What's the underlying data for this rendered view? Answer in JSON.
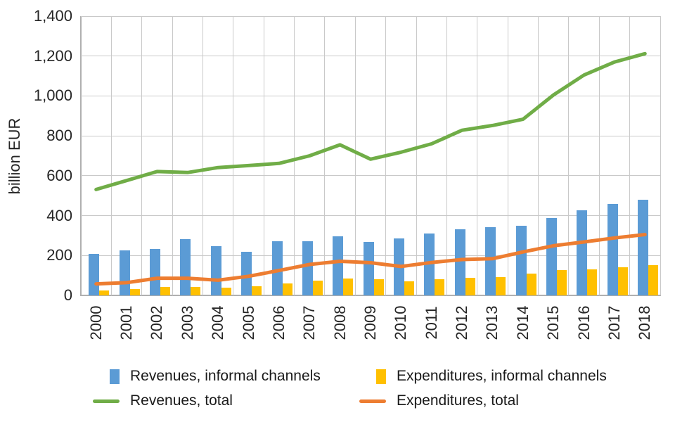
{
  "chart_data": {
    "type": "bar",
    "subtype": "bar-line-combo",
    "title": "",
    "xlabel": "",
    "ylabel": "billion EUR",
    "ylim": [
      0,
      1400
    ],
    "ytick_interval": 200,
    "ytick_labels_top_down": [
      "1,400",
      "1,200",
      "1,000",
      "800",
      "600",
      "400",
      "200",
      "0"
    ],
    "grid": "both",
    "legend_position": "bottom",
    "categories": [
      "2000",
      "2001",
      "2002",
      "2003",
      "2004",
      "2005",
      "2006",
      "2007",
      "2008",
      "2009",
      "2010",
      "2011",
      "2012",
      "2013",
      "2014",
      "2015",
      "2016",
      "2017",
      "2018"
    ],
    "series": [
      {
        "name": "Revenues, informal channels",
        "kind": "bar",
        "color": "#5b9bd5",
        "values": [
          207,
          226,
          232,
          281,
          246,
          220,
          271,
          272,
          298,
          268,
          286,
          310,
          331,
          341,
          349,
          387,
          427,
          458,
          478
        ]
      },
      {
        "name": "Expenditures, informal channels",
        "kind": "bar",
        "color": "#ffc000",
        "values": [
          26,
          31,
          42,
          42,
          38,
          47,
          60,
          75,
          83,
          80,
          71,
          80,
          88,
          91,
          110,
          126,
          130,
          140,
          151
        ]
      },
      {
        "name": "Revenues, total",
        "kind": "line",
        "color": "#70ad47",
        "values": [
          531,
          576,
          621,
          616,
          641,
          651,
          662,
          700,
          755,
          683,
          718,
          760,
          828,
          852,
          883,
          1005,
          1105,
          1170,
          1212
        ]
      },
      {
        "name": "Expenditures, total",
        "kind": "line",
        "color": "#ed7d31",
        "values": [
          58,
          64,
          86,
          86,
          76,
          96,
          125,
          155,
          171,
          164,
          145,
          165,
          180,
          184,
          218,
          249,
          268,
          288,
          305
        ]
      }
    ],
    "colors": {
      "gridline": "#c9c9c9",
      "axis": "#b0b0b0",
      "text": "#262626",
      "background": "#ffffff"
    }
  }
}
